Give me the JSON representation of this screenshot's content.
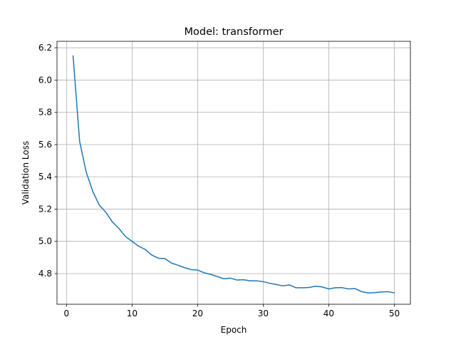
{
  "chart_data": {
    "type": "line",
    "title": "Model: transformer",
    "xlabel": "Epoch",
    "ylabel": "Validation Loss",
    "xlim": [
      -1.45,
      52.45
    ],
    "ylim": [
      4.61,
      6.24
    ],
    "xticks": [
      0,
      10,
      20,
      30,
      40,
      50
    ],
    "yticks": [
      4.8,
      5.0,
      5.2,
      5.4,
      5.6,
      5.8,
      6.0,
      6.2
    ],
    "ytick_labels": [
      "4.8",
      "5.0",
      "5.2",
      "5.4",
      "5.6",
      "5.8",
      "6.0",
      "6.2"
    ],
    "grid": true,
    "colors": {
      "series": "#1f77b4",
      "grid": "#b0b0b0"
    },
    "series": [
      {
        "x": [
          1,
          2,
          3,
          4,
          5,
          6,
          7,
          8,
          9,
          10,
          11,
          12,
          13,
          14,
          15,
          16,
          17,
          18,
          19,
          20,
          21,
          22,
          23,
          24,
          25,
          26,
          27,
          28,
          29,
          30,
          31,
          32,
          33,
          34,
          35,
          36,
          37,
          38,
          39,
          40,
          41,
          42,
          43,
          44,
          45,
          46,
          47,
          48,
          49,
          50
        ],
        "values": [
          6.15,
          5.62,
          5.43,
          5.31,
          5.225,
          5.18,
          5.12,
          5.08,
          5.03,
          5.0,
          4.97,
          4.95,
          4.915,
          4.895,
          4.893,
          4.865,
          4.852,
          4.837,
          4.825,
          4.822,
          4.805,
          4.795,
          4.782,
          4.768,
          4.772,
          4.76,
          4.762,
          4.755,
          4.755,
          4.75,
          4.74,
          4.732,
          4.724,
          4.73,
          4.712,
          4.712,
          4.714,
          4.722,
          4.717,
          4.705,
          4.712,
          4.713,
          4.705,
          4.707,
          4.688,
          4.68,
          4.682,
          4.686,
          4.688,
          4.681
        ]
      }
    ]
  }
}
